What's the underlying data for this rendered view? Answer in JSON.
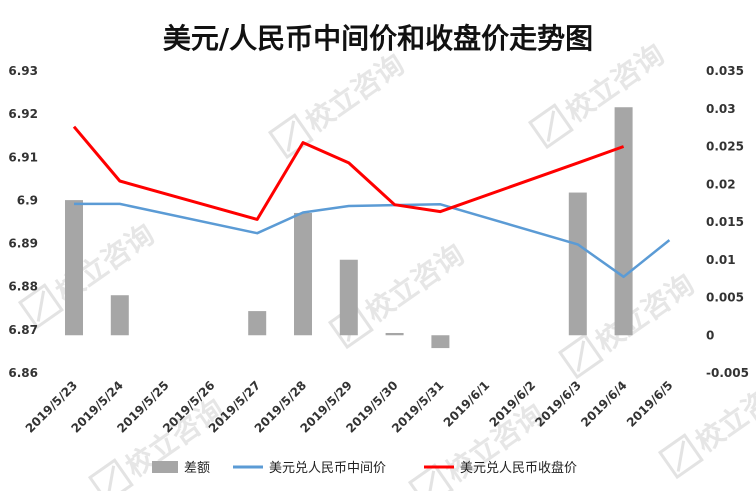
{
  "chart_data": {
    "type": "bar+line",
    "title": "美元/人民币中间价和收盘价走势图",
    "categories": [
      "2019/5/23",
      "2019/5/24",
      "2019/5/25",
      "2019/5/26",
      "2019/5/27",
      "2019/5/28",
      "2019/5/29",
      "2019/5/30",
      "2019/5/31",
      "2019/6/1",
      "2019/6/2",
      "2019/6/3",
      "2019/6/4",
      "2019/6/5"
    ],
    "ylim_left": [
      6.86,
      6.93
    ],
    "yticks_left": [
      "6.86",
      "6.87",
      "6.88",
      "6.89",
      "6.9",
      "6.91",
      "6.92",
      "6.93"
    ],
    "ylim_right": [
      -0.005,
      0.035
    ],
    "yticks_right": [
      "-0.005",
      "0",
      "0.005",
      "0.01",
      "0.015",
      "0.02",
      "0.025",
      "0.03",
      "0.035"
    ],
    "legend_position": "bottom",
    "series": [
      {
        "name": "差额",
        "kind": "bar",
        "axis": "right",
        "color": "#a6a6a6",
        "values": [
          0.0179,
          0.0053,
          null,
          null,
          0.0032,
          0.0162,
          0.01,
          0.0003,
          -0.0017,
          null,
          null,
          0.0189,
          0.0302,
          null
        ]
      },
      {
        "name": "美元兑人民币中间价",
        "kind": "line",
        "axis": "left",
        "color": "#5b9bd5",
        "values": [
          6.8992,
          6.8992,
          null,
          null,
          6.8924,
          6.8972,
          6.8987,
          null,
          6.8991,
          null,
          null,
          6.8898,
          6.8823,
          6.8908
        ]
      },
      {
        "name": "美元兑人民币收盘价",
        "kind": "line",
        "axis": "left",
        "color": "#ff0000",
        "values": [
          6.9171,
          6.9045,
          null,
          null,
          6.8956,
          6.9134,
          6.9087,
          6.899,
          6.8974,
          null,
          null,
          6.9087,
          6.9125,
          null
        ]
      }
    ]
  },
  "watermark": {
    "label": "校立咨询"
  }
}
